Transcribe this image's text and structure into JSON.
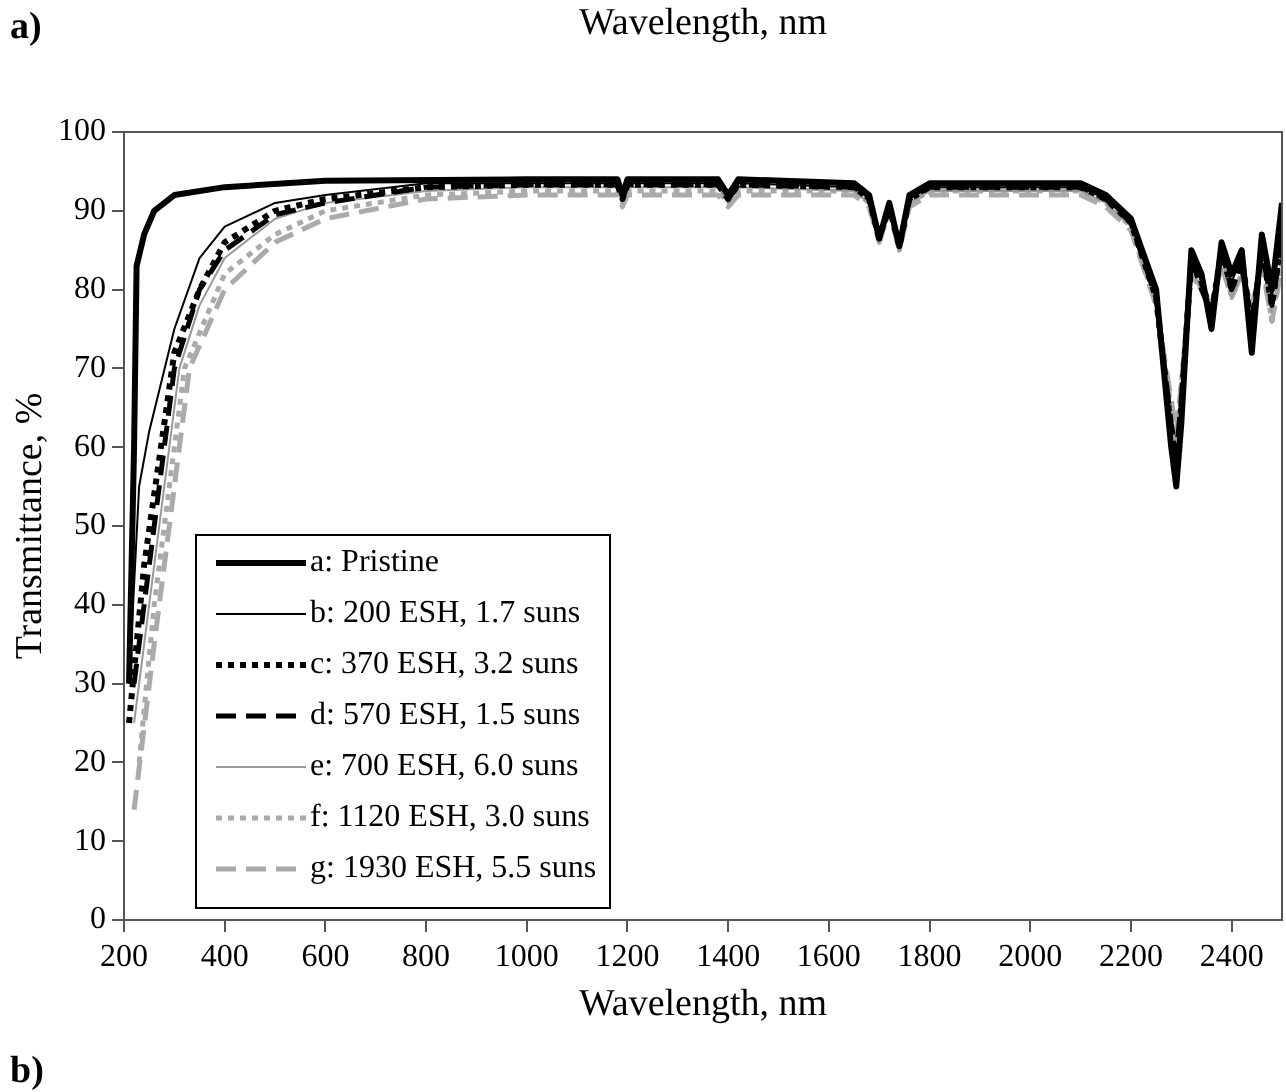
{
  "chart_data": {
    "type": "line",
    "xlabel": "Wavelength, nm",
    "ylabel": "Transmittance, %",
    "annotations": [
      "a)",
      "Wavelength, nm",
      "b)"
    ],
    "xlim": [
      200,
      2500
    ],
    "xticks": [
      200,
      400,
      600,
      800,
      1000,
      1200,
      1400,
      1600,
      1800,
      2000,
      2200,
      2400
    ],
    "ylim": [
      0,
      100
    ],
    "yticks": [
      0,
      10,
      20,
      30,
      40,
      50,
      60,
      70,
      80,
      90,
      100
    ],
    "grid": false,
    "legend": "bottom left",
    "marker": "none",
    "series": [
      {
        "name": "a: Pristine",
        "color": "#000000",
        "line_style": "solid",
        "x": [
          210,
          220,
          225,
          240,
          260,
          300,
          400,
          600,
          1000,
          1180,
          1190,
          1200,
          1380,
          1400,
          1420,
          1650,
          1680,
          1700,
          1720,
          1740,
          1760,
          1800,
          2100,
          2150,
          2200,
          2250,
          2280,
          2290,
          2300,
          2320,
          2340,
          2360,
          2380,
          2400,
          2420,
          2440,
          2460,
          2480,
          2500
        ],
        "values": [
          30,
          60,
          83,
          87,
          90,
          92,
          93,
          93.8,
          94,
          94,
          92,
          94,
          94,
          92,
          94,
          93.5,
          92,
          86.5,
          91,
          85.5,
          92,
          93.5,
          93.5,
          92,
          89,
          80,
          60,
          55,
          63,
          85,
          82,
          75,
          86,
          82,
          85,
          72,
          87,
          80,
          91
        ]
      },
      {
        "name": "b: 200 ESH, 1.7 suns",
        "color": "#000000",
        "line_style": "solid",
        "x": [
          210,
          230,
          250,
          300,
          350,
          400,
          500,
          600,
          800,
          1000,
          1180,
          1190,
          1200,
          1380,
          1400,
          1420,
          1650,
          1680,
          1700,
          1720,
          1740,
          1760,
          1800,
          2100,
          2150,
          2200,
          2250,
          2280,
          2290,
          2300,
          2320,
          2340,
          2360,
          2380,
          2400,
          2420,
          2440,
          2460,
          2480,
          2500
        ],
        "values": [
          30,
          55,
          62,
          75,
          84,
          88,
          91,
          92,
          93.5,
          93.5,
          93.5,
          91.5,
          93.5,
          93.5,
          91.5,
          93.5,
          93,
          91.5,
          86.5,
          90.5,
          85.5,
          91.5,
          93,
          93,
          91.5,
          88.5,
          79,
          61,
          57,
          64,
          84,
          81,
          76,
          85,
          81,
          84,
          74,
          86,
          79,
          88
        ]
      },
      {
        "name": "c: 370 ESH, 3.2 suns",
        "color": "#000000",
        "line_style": "dotted",
        "x": [
          210,
          240,
          300,
          350,
          400,
          500,
          600,
          800,
          1000,
          1180,
          1190,
          1200,
          1380,
          1400,
          1420,
          1650,
          1680,
          1700,
          1720,
          1740,
          1760,
          1800,
          2100,
          2150,
          2200,
          2250,
          2280,
          2290,
          2300,
          2320,
          2340,
          2360,
          2380,
          2400,
          2420,
          2440,
          2460,
          2480,
          2500
        ],
        "values": [
          25,
          45,
          72,
          80,
          86,
          90,
          91.5,
          93,
          93.3,
          93.3,
          91.5,
          93.3,
          93.3,
          91.5,
          93.3,
          93,
          91.5,
          86.5,
          90.5,
          85.5,
          91.5,
          93,
          93,
          91.5,
          88.5,
          79,
          62,
          58,
          65,
          84,
          81,
          77,
          85,
          80,
          84,
          75,
          85,
          78,
          87
        ]
      },
      {
        "name": "d: 570 ESH, 1.5 suns",
        "color": "#000000",
        "line_style": "dashed",
        "x": [
          220,
          250,
          300,
          350,
          400,
          500,
          600,
          800,
          1000,
          1180,
          1190,
          1200,
          1380,
          1400,
          1420,
          1650,
          1680,
          1700,
          1720,
          1740,
          1760,
          1800,
          2100,
          2150,
          2200,
          2250,
          2280,
          2290,
          2300,
          2320,
          2340,
          2360,
          2380,
          2400,
          2420,
          2440,
          2460,
          2480,
          2500
        ],
        "values": [
          30,
          45,
          70,
          80,
          85,
          89.5,
          91,
          93,
          93.3,
          93.3,
          91.5,
          93.3,
          93.3,
          91.5,
          93.3,
          93,
          91.5,
          86.5,
          90.5,
          85.5,
          91.5,
          93,
          93,
          91.5,
          88.5,
          79,
          63,
          59,
          66,
          84,
          80,
          77,
          85,
          80,
          83,
          76,
          85,
          78,
          86
        ]
      },
      {
        "name": "e: 700 ESH, 6.0 suns",
        "color": "#999999",
        "line_style": "solid",
        "x": [
          220,
          260,
          310,
          350,
          400,
          500,
          600,
          800,
          1000,
          1180,
          1190,
          1200,
          1380,
          1400,
          1420,
          1650,
          1680,
          1700,
          1720,
          1740,
          1760,
          1800,
          2100,
          2150,
          2200,
          2250,
          2280,
          2290,
          2300,
          2320,
          2340,
          2360,
          2380,
          2400,
          2420,
          2440,
          2460,
          2480
        ],
        "values": [
          25,
          45,
          70,
          78,
          84,
          89,
          91,
          92.5,
          93,
          93,
          91,
          93,
          93,
          91,
          93,
          92.5,
          91,
          86,
          90,
          85,
          91,
          92.5,
          92.5,
          91,
          88,
          78,
          64,
          60,
          67,
          83,
          80,
          78,
          84,
          79,
          82,
          77,
          84,
          77
        ]
      },
      {
        "name": "f: 1120 ESH, 3.0 suns",
        "color": "#aaaaaa",
        "line_style": "dotted",
        "x": [
          230,
          260,
          320,
          400,
          500,
          600,
          800,
          1000,
          1180,
          1190,
          1200,
          1380,
          1400,
          1420,
          1650,
          1680,
          1700,
          1720,
          1740,
          1760,
          1800,
          2100,
          2150,
          2200,
          2250,
          2280,
          2290,
          2300,
          2320,
          2340,
          2360,
          2380,
          2400,
          2420,
          2440,
          2460,
          2480,
          2500
        ],
        "values": [
          20,
          40,
          70,
          82,
          87,
          90,
          92,
          92.5,
          92.5,
          91,
          92.5,
          92.5,
          91,
          92.5,
          92.5,
          91,
          86,
          90,
          85,
          91,
          92.5,
          92.5,
          91,
          88,
          78,
          65,
          61,
          68,
          83,
          80,
          78,
          84,
          79,
          82,
          77,
          84,
          76,
          84
        ]
      },
      {
        "name": "g: 1930 ESH, 5.5 suns",
        "color": "#aaaaaa",
        "line_style": "dashed",
        "x": [
          220,
          260,
          330,
          400,
          500,
          600,
          800,
          1000,
          1180,
          1190,
          1200,
          1380,
          1400,
          1420,
          1650,
          1680,
          1700,
          1720,
          1740,
          1760,
          1800,
          2100,
          2150,
          2200,
          2250,
          2280,
          2290,
          2300,
          2320,
          2340,
          2360,
          2380,
          2400,
          2420,
          2440,
          2460,
          2480,
          2500
        ],
        "values": [
          14,
          35,
          70,
          80,
          86,
          89,
          91.5,
          92,
          92,
          90.5,
          92,
          92,
          90.5,
          92,
          92,
          90.5,
          86,
          90,
          85,
          90.5,
          92,
          92,
          90.5,
          87.5,
          78,
          66,
          62,
          68,
          82,
          80,
          78,
          83,
          79,
          82,
          78,
          83,
          76,
          83
        ]
      }
    ]
  }
}
